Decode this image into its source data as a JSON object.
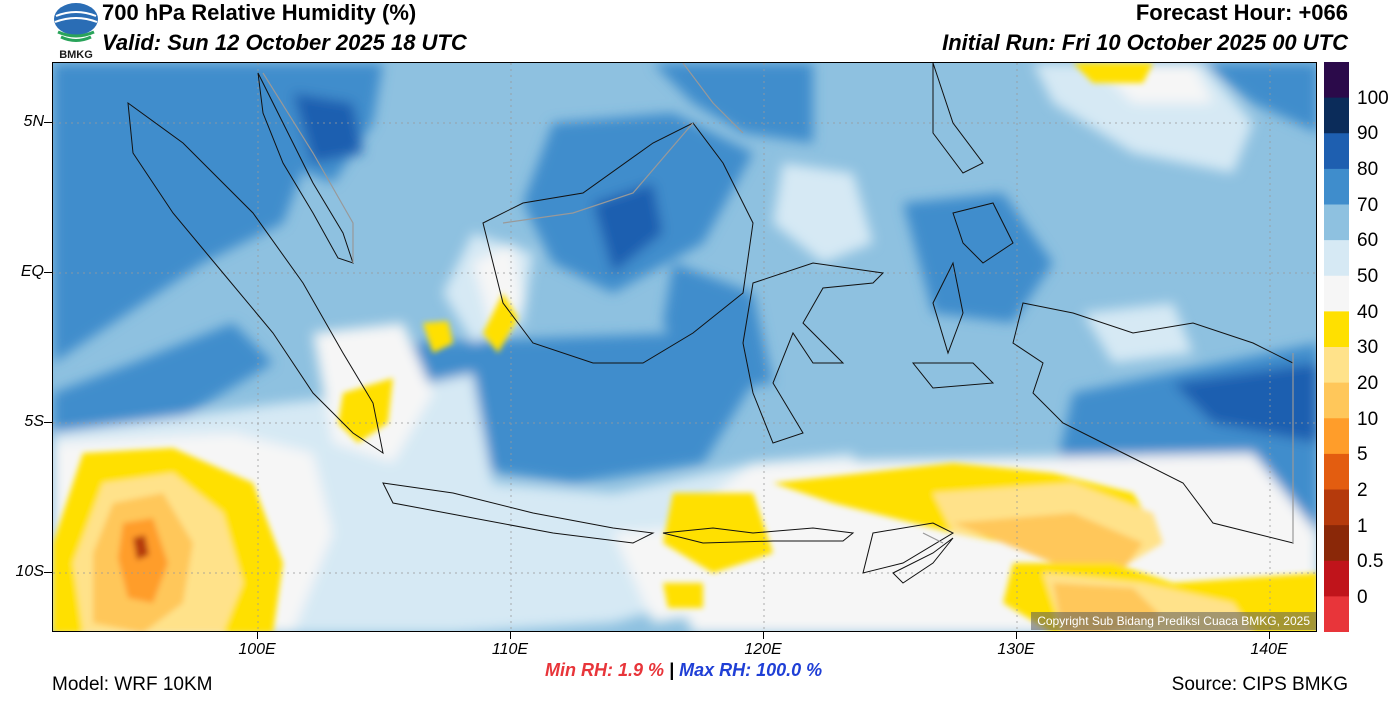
{
  "header": {
    "title": "700 hPa Relative Humidity (%)",
    "valid": "Valid: Sun 12 October 2025 18 UTC",
    "forecast_hour": "Forecast Hour: +066",
    "initial_run": "Initial Run: Fri 10 October 2025 00 UTC"
  },
  "logo": {
    "text": "BMKG"
  },
  "axes": {
    "lat_labels": [
      "5N",
      "EQ",
      "5S",
      "10S"
    ],
    "lon_labels": [
      "100E",
      "110E",
      "120E",
      "130E",
      "140E"
    ]
  },
  "colorbar": {
    "labels": [
      "100",
      "90",
      "80",
      "70",
      "60",
      "50",
      "40",
      "30",
      "20",
      "10",
      "5",
      "2",
      "1",
      "0.5",
      "0"
    ],
    "colors": [
      "#2b0a4a",
      "#0b2c5a",
      "#1e5fb0",
      "#3f8dcc",
      "#8ec1e0",
      "#d6e9f4",
      "#f6f6f6",
      "#ffe000",
      "#ffe28a",
      "#ffc75a",
      "#ff9d2a",
      "#e35d10",
      "#b53a0c",
      "#8a2808",
      "#c0141b",
      "#e8353a"
    ]
  },
  "stats": {
    "min_label": "Min RH:   1.9 %",
    "separator": "|",
    "max_label": "Max RH: 100.0 %"
  },
  "footer": {
    "model": "Model: WRF 10KM",
    "source": "Source: CIPS BMKG",
    "copyright": "Copyright Sub Bidang Prediksi Cuaca BMKG, 2025"
  }
}
